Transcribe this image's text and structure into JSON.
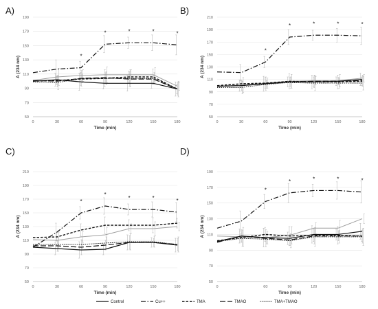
{
  "chart_data": [
    {
      "panel": "A)",
      "type": "line",
      "xlabel": "Time (min)",
      "ylabel": "A (234 nm)",
      "x": [
        0,
        30,
        60,
        90,
        120,
        150,
        180
      ],
      "x_ticks": [
        "0",
        "30",
        "60",
        "90",
        "120",
        "150",
        "180"
      ],
      "ylim": [
        50,
        190
      ],
      "y_ticks": [
        "50",
        "70",
        "90",
        "110",
        "130",
        "150",
        "170",
        "190"
      ],
      "grid": true,
      "series": [
        {
          "name": "Control",
          "values": [
            100,
            102,
            99,
            97,
            97,
            97,
            89
          ]
        },
        {
          "name": "Cu++",
          "values": [
            112,
            117,
            119,
            152,
            154,
            154,
            151
          ]
        },
        {
          "name": "TMA",
          "values": [
            100,
            101,
            103,
            104,
            106,
            106,
            89
          ]
        },
        {
          "name": "TMAO",
          "values": [
            101,
            100,
            104,
            105,
            103,
            103,
            89
          ]
        },
        {
          "name": "TMA+TMAO",
          "values": [
            99,
            98,
            104,
            104,
            104,
            104,
            89
          ]
        },
        {
          "name": "",
          "values": [
            101,
            106,
            108,
            109,
            109,
            109,
            93
          ]
        }
      ],
      "stars_at_x": [
        60,
        90,
        120,
        150,
        180
      ]
    },
    {
      "panel": "B)",
      "type": "line",
      "xlabel": "Time (min)",
      "ylabel": "A (234 nm)",
      "x": [
        0,
        30,
        60,
        90,
        120,
        150,
        180
      ],
      "x_ticks": [
        "0",
        "30",
        "60",
        "90",
        "120",
        "150",
        "180"
      ],
      "ylim": [
        50,
        210
      ],
      "y_ticks": [
        "50",
        "70",
        "90",
        "110",
        "130",
        "150",
        "170",
        "190",
        "210"
      ],
      "grid": true,
      "series": [
        {
          "name": "Control",
          "values": [
            99,
            100,
            103,
            106,
            106,
            107,
            110
          ]
        },
        {
          "name": "Cu++",
          "values": [
            122,
            121,
            138,
            178,
            181,
            181,
            180
          ]
        },
        {
          "name": "TMA",
          "values": [
            100,
            103,
            104,
            107,
            106,
            106,
            107
          ]
        },
        {
          "name": "TMAO",
          "values": [
            99,
            100,
            103,
            106,
            107,
            107,
            108
          ]
        },
        {
          "name": "TMA+TMAO",
          "values": [
            97,
            97,
            102,
            105,
            104,
            104,
            104
          ]
        },
        {
          "name": "",
          "values": [
            99,
            101,
            104,
            107,
            108,
            108,
            112
          ]
        }
      ],
      "stars_at_x": [
        60,
        90,
        120,
        150,
        180
      ]
    },
    {
      "panel": "C)",
      "type": "line",
      "xlabel": "Time (min)",
      "ylabel": "A (234 nm)",
      "x": [
        0,
        30,
        60,
        90,
        120,
        150,
        180
      ],
      "x_ticks": [
        "0",
        "30",
        "60",
        "90",
        "120",
        "150",
        "180"
      ],
      "ylim": [
        50,
        210
      ],
      "y_ticks": [
        "50",
        "70",
        "90",
        "110",
        "130",
        "150",
        "170",
        "190",
        "210"
      ],
      "grid": true,
      "series": [
        {
          "name": "Control",
          "values": [
            100,
            98,
            96,
            97,
            107,
            107,
            103
          ]
        },
        {
          "name": "Cu++",
          "values": [
            100,
            122,
            150,
            160,
            155,
            155,
            151
          ]
        },
        {
          "name": "TMA",
          "values": [
            114,
            115,
            125,
            132,
            132,
            132,
            135
          ]
        },
        {
          "name": "TMAO",
          "values": [
            102,
            102,
            100,
            103,
            107,
            107,
            104
          ]
        },
        {
          "name": "TMA+TMAO",
          "values": [
            104,
            104,
            104,
            106,
            108,
            108,
            104
          ]
        },
        {
          "name": "",
          "values": [
            111,
            110,
            115,
            118,
            127,
            127,
            130
          ]
        }
      ],
      "stars_at_x": [
        60,
        90,
        120,
        150,
        180
      ]
    },
    {
      "panel": "D)",
      "type": "line",
      "xlabel": "Time (min)",
      "ylabel": "A (234 nm)",
      "x": [
        0,
        30,
        60,
        90,
        120,
        150,
        180
      ],
      "x_ticks": [
        "0",
        "60",
        "90",
        "120",
        "150",
        "180"
      ],
      "x_tick_values": [
        0,
        60,
        90,
        120,
        150,
        180
      ],
      "ylim": [
        50,
        190
      ],
      "y_ticks": [
        "50",
        "70",
        "90",
        "110",
        "130",
        "150",
        "170",
        "190"
      ],
      "grid": true,
      "series": [
        {
          "name": "Control",
          "values": [
            101,
            108,
            106,
            105,
            110,
            110,
            114
          ]
        },
        {
          "name": "Cu++",
          "values": [
            118,
            127,
            152,
            163,
            166,
            166,
            164
          ]
        },
        {
          "name": "TMA",
          "values": [
            102,
            106,
            110,
            108,
            109,
            109,
            108
          ]
        },
        {
          "name": "TMAO",
          "values": [
            100,
            108,
            105,
            103,
            108,
            108,
            108
          ]
        },
        {
          "name": "TMA+TMAO",
          "values": [
            101,
            105,
            104,
            102,
            107,
            107,
            107
          ]
        },
        {
          "name": "",
          "values": [
            108,
            107,
            106,
            109,
            118,
            118,
            130
          ]
        }
      ],
      "stars_at_x": [
        60,
        90,
        120,
        150,
        180
      ]
    }
  ],
  "legend": [
    {
      "name": "Control",
      "style": "solid"
    },
    {
      "name": "Cu++",
      "style": "dashdot"
    },
    {
      "name": "TMA",
      "style": "dashed"
    },
    {
      "name": "TMAO",
      "style": "longdash"
    },
    {
      "name": "TMA+TMAO",
      "style": "dotted"
    }
  ],
  "colors": {
    "black": "#111111",
    "gray": "#9e9e9e",
    "grid": "#e4e4e4",
    "errorbar": "#b0b0b0"
  },
  "star_symbol": "*"
}
